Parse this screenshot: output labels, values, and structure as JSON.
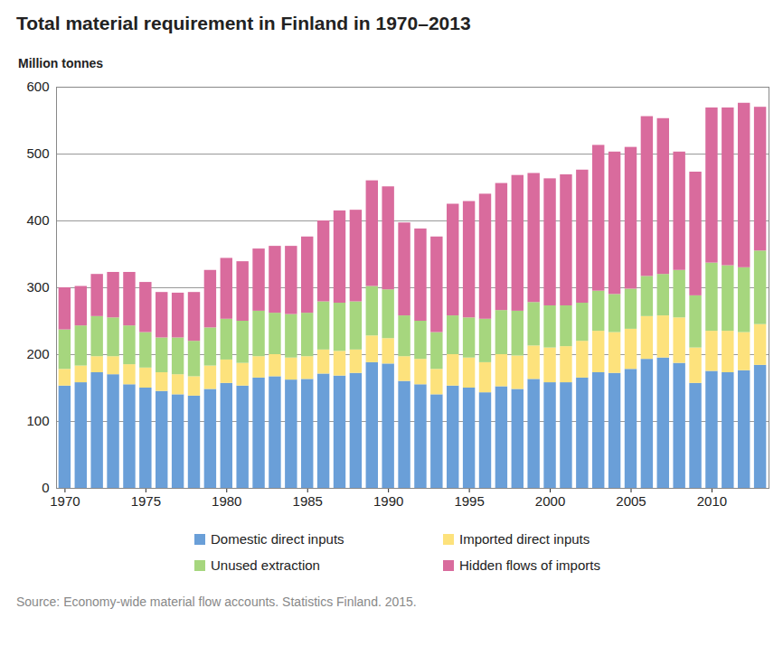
{
  "chart_data": {
    "type": "bar",
    "title": "Total material requirement in Finland in 1970–2013",
    "y_label": "Million tonnes",
    "source": "Source: Economy-wide material flow accounts. Statistics Finland. 2015.",
    "stacked": true,
    "grid": true,
    "legend": "bottom",
    "categories": [
      1970,
      1971,
      1972,
      1973,
      1974,
      1975,
      1976,
      1977,
      1978,
      1979,
      1980,
      1981,
      1982,
      1983,
      1984,
      1985,
      1986,
      1987,
      1988,
      1989,
      1990,
      1991,
      1992,
      1993,
      1994,
      1995,
      1996,
      1997,
      1998,
      1999,
      2000,
      2001,
      2002,
      2003,
      2004,
      2005,
      2006,
      2007,
      2008,
      2009,
      2010,
      2011,
      2012,
      2013
    ],
    "xticks": [
      1970,
      1975,
      1980,
      1985,
      1990,
      1995,
      2000,
      2005,
      2010
    ],
    "ylim": [
      0,
      600
    ],
    "yticks": [
      0,
      100,
      200,
      300,
      400,
      500,
      600
    ],
    "series": [
      {
        "name": "Domestic direct inputs",
        "color": "#6a9fd8",
        "values": [
          153,
          158,
          173,
          170,
          155,
          150,
          145,
          140,
          138,
          148,
          157,
          153,
          165,
          167,
          162,
          163,
          171,
          168,
          172,
          188,
          186,
          160,
          155,
          140,
          153,
          150,
          143,
          152,
          148,
          163,
          158,
          158,
          165,
          173,
          172,
          178,
          193,
          195,
          187,
          157,
          175,
          173,
          176,
          184
        ]
      },
      {
        "name": "Imported direct inputs",
        "color": "#fde27c",
        "values": [
          25,
          25,
          24,
          27,
          30,
          30,
          28,
          30,
          29,
          35,
          35,
          34,
          32,
          33,
          33,
          34,
          36,
          37,
          35,
          40,
          38,
          37,
          38,
          38,
          47,
          45,
          45,
          48,
          50,
          50,
          52,
          54,
          55,
          62,
          61,
          60,
          64,
          63,
          68,
          53,
          60,
          62,
          57,
          61
        ]
      },
      {
        "name": "Unused extraction",
        "color": "#a6d67e",
        "values": [
          59,
          60,
          60,
          58,
          58,
          53,
          52,
          55,
          53,
          57,
          61,
          63,
          68,
          62,
          65,
          65,
          72,
          72,
          72,
          74,
          73,
          61,
          57,
          55,
          58,
          60,
          65,
          66,
          67,
          65,
          63,
          61,
          57,
          60,
          57,
          60,
          60,
          62,
          71,
          78,
          102,
          98,
          97,
          110
        ]
      },
      {
        "name": "Hidden flows of imports",
        "color": "#d96b9d",
        "values": [
          63,
          59,
          63,
          68,
          80,
          75,
          68,
          67,
          73,
          86,
          91,
          89,
          93,
          100,
          102,
          114,
          121,
          138,
          137,
          158,
          154,
          139,
          138,
          143,
          167,
          174,
          187,
          190,
          203,
          193,
          190,
          196,
          199,
          218,
          213,
          212,
          239,
          233,
          177,
          185,
          232,
          236,
          246,
          215
        ]
      }
    ]
  }
}
